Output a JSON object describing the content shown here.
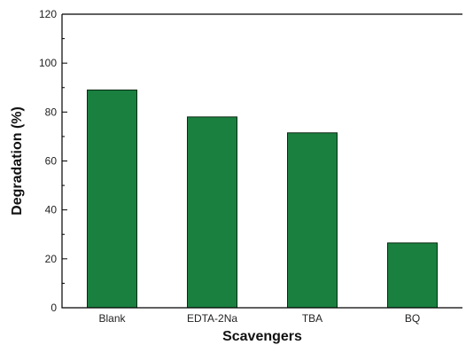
{
  "chart_data": {
    "type": "bar",
    "title": "",
    "xlabel": "Scavengers",
    "ylabel": "Degradation (%)",
    "categories": [
      "Blank",
      "EDTA-2Na",
      "TBA",
      "BQ"
    ],
    "values": [
      89,
      78,
      71.5,
      26.5
    ],
    "ylim": [
      0,
      120
    ],
    "yticks": [
      "0",
      "20",
      "40",
      "60",
      "80",
      "100",
      "120"
    ],
    "bar_color": "#1a8040",
    "bar_edge_color": "#0a2a12",
    "grid": false,
    "legend": "none"
  }
}
